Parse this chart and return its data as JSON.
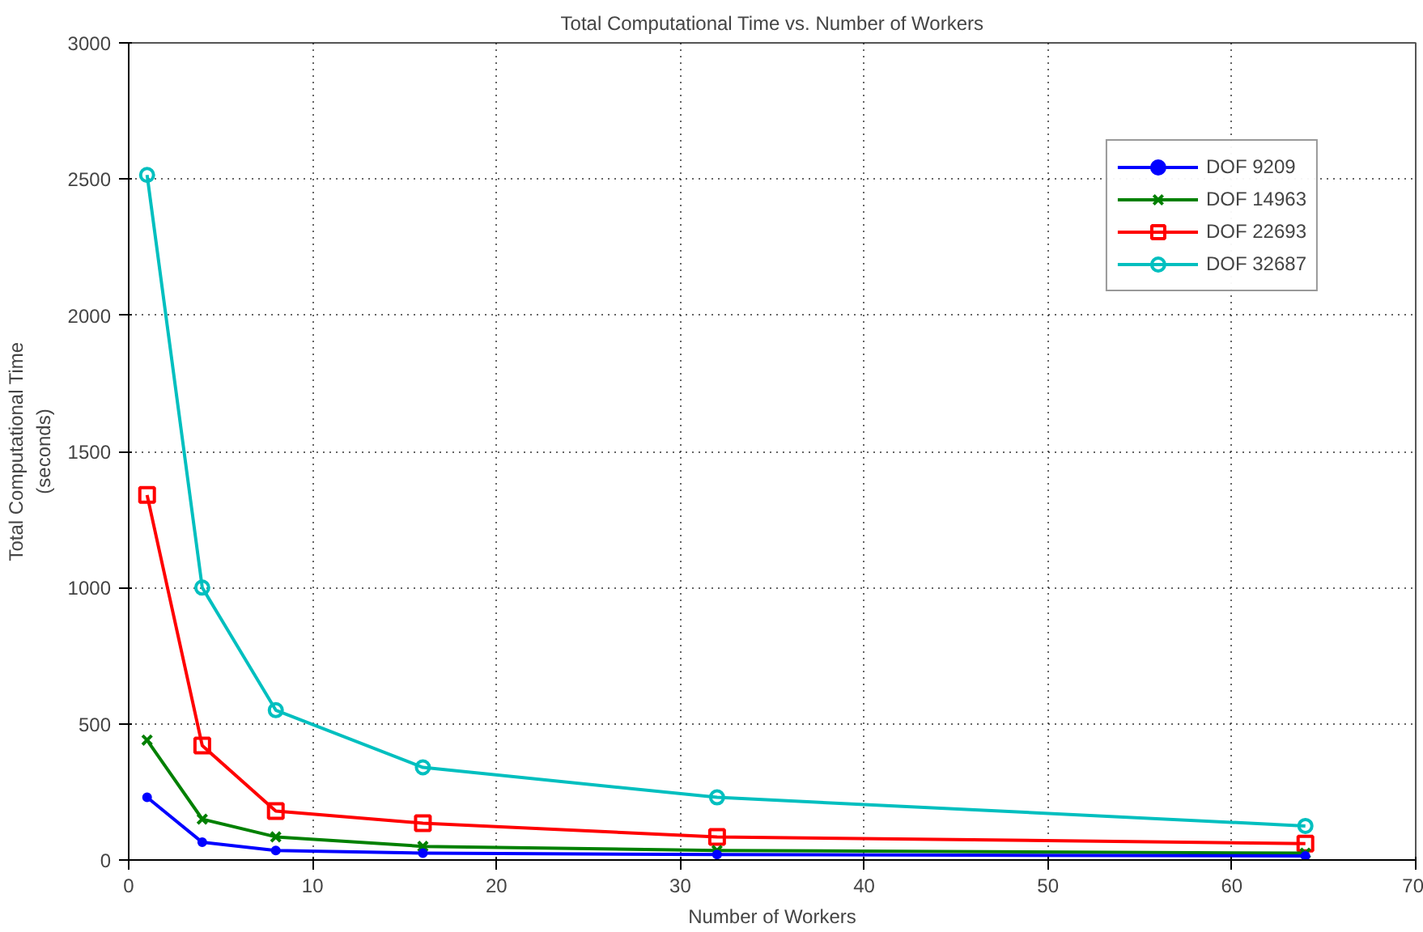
{
  "chart_data": {
    "type": "line",
    "title": "Total Computational Time vs. Number of Workers",
    "xlabel": "Number of Workers",
    "ylabel": "Total Computational Time\n(seconds)",
    "x": [
      1,
      4,
      8,
      16,
      32,
      64
    ],
    "series": [
      {
        "name": "DOF 9209",
        "color": "#0000ff",
        "marker": "dot",
        "values": [
          230,
          65,
          35,
          25,
          20,
          15
        ]
      },
      {
        "name": "DOF 14963",
        "color": "#008000",
        "marker": "cross",
        "values": [
          440,
          150,
          85,
          50,
          35,
          25
        ]
      },
      {
        "name": "DOF 22693",
        "color": "#ff0000",
        "marker": "square",
        "values": [
          1340,
          420,
          180,
          135,
          85,
          60
        ]
      },
      {
        "name": "DOF 32687",
        "color": "#00bfbf",
        "marker": "circle",
        "values": [
          2515,
          1000,
          550,
          340,
          230,
          125
        ]
      }
    ],
    "xlim": [
      0,
      70
    ],
    "ylim": [
      0,
      3000
    ],
    "xticks": [
      0,
      10,
      20,
      30,
      40,
      50,
      60,
      70
    ],
    "yticks": [
      0,
      500,
      1000,
      1500,
      2000,
      2500,
      3000
    ],
    "grid": true,
    "legend": "top right",
    "line_style": "solid"
  }
}
